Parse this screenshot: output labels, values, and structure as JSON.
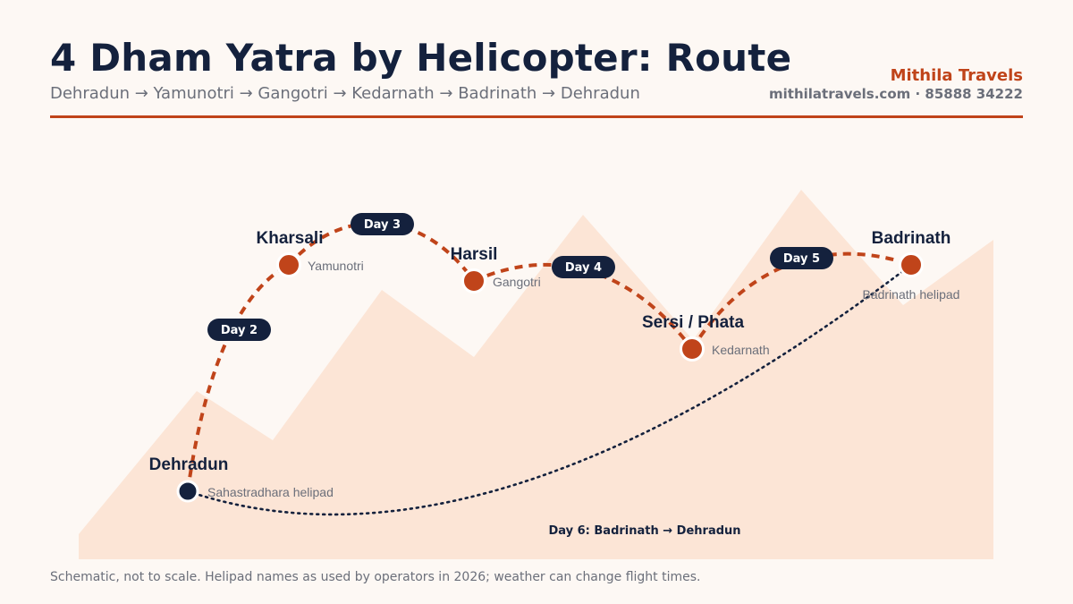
{
  "header": {
    "title": "4 Dham Yatra by Helicopter: Route",
    "subtitle": "Dehradun → Yamunotri → Gangotri → Kedarnath → Badrinath → Dehradun",
    "brand": "Mithila Travels",
    "contact": "mithilatravels.com · 85888 34222"
  },
  "colors": {
    "accent": "#c0441a",
    "navy": "#14213d",
    "mountain": "#fce5d6",
    "background": "#fdf8f4"
  },
  "stops": [
    {
      "name": "Dehradun",
      "sub": "Sahastradhara helipad"
    },
    {
      "name": "Kharsali",
      "sub": "Yamunotri"
    },
    {
      "name": "Harsil",
      "sub": "Gangotri"
    },
    {
      "name": "Sersi / Phata",
      "sub": "Kedarnath"
    },
    {
      "name": "Badrinath",
      "sub": "Badrinath helipad"
    }
  ],
  "legs": [
    {
      "label": "Day 2"
    },
    {
      "label": "Day 3"
    },
    {
      "label": "Day 4"
    },
    {
      "label": "Day 5"
    }
  ],
  "return_leg": {
    "label": "Day 6: Badrinath → Dehradun"
  },
  "footnote": "Schematic, not to scale. Helipad names as used by operators in 2026; weather can change flight times."
}
